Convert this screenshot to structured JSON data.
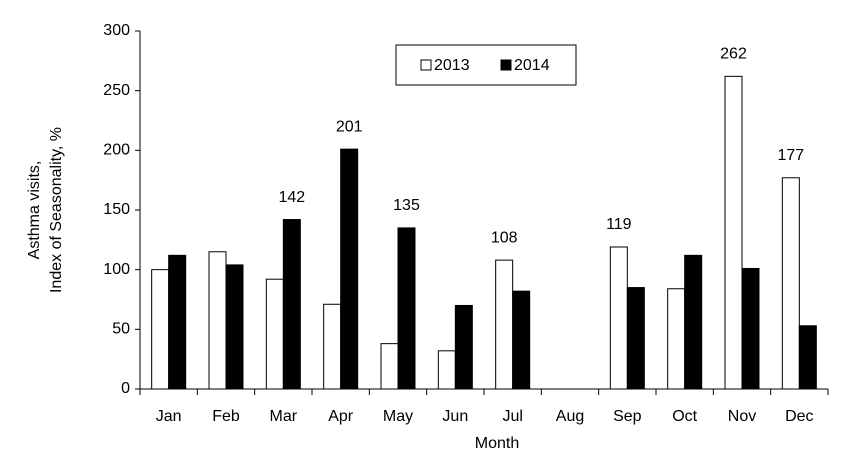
{
  "chart_data": {
    "type": "bar",
    "xlabel": "Month",
    "ylabel": [
      "Asthma visits,",
      "Index of Seasonality, %"
    ],
    "categories": [
      "Jan",
      "Feb",
      "Mar",
      "Apr",
      "May",
      "Jun",
      "Jul",
      "Aug",
      "Sep",
      "Oct",
      "Nov",
      "Dec"
    ],
    "series": [
      {
        "name": "2013",
        "color": "#ffffff",
        "values": [
          100,
          115,
          92,
          71,
          38,
          32,
          108,
          0,
          119,
          84,
          262,
          177
        ],
        "value_labels": [
          null,
          null,
          null,
          null,
          null,
          null,
          "108",
          null,
          "119",
          null,
          "262",
          "177"
        ]
      },
      {
        "name": "2014",
        "color": "#000000",
        "values": [
          112,
          104,
          142,
          201,
          135,
          70,
          82,
          0,
          85,
          112,
          101,
          53
        ],
        "value_labels": [
          null,
          null,
          "142",
          "201",
          "135",
          null,
          null,
          null,
          null,
          null,
          null,
          null
        ]
      }
    ],
    "ylim": [
      0,
      300
    ],
    "yticks": [
      0,
      50,
      100,
      150,
      200,
      250,
      300
    ],
    "grid": false,
    "legend": "top"
  }
}
